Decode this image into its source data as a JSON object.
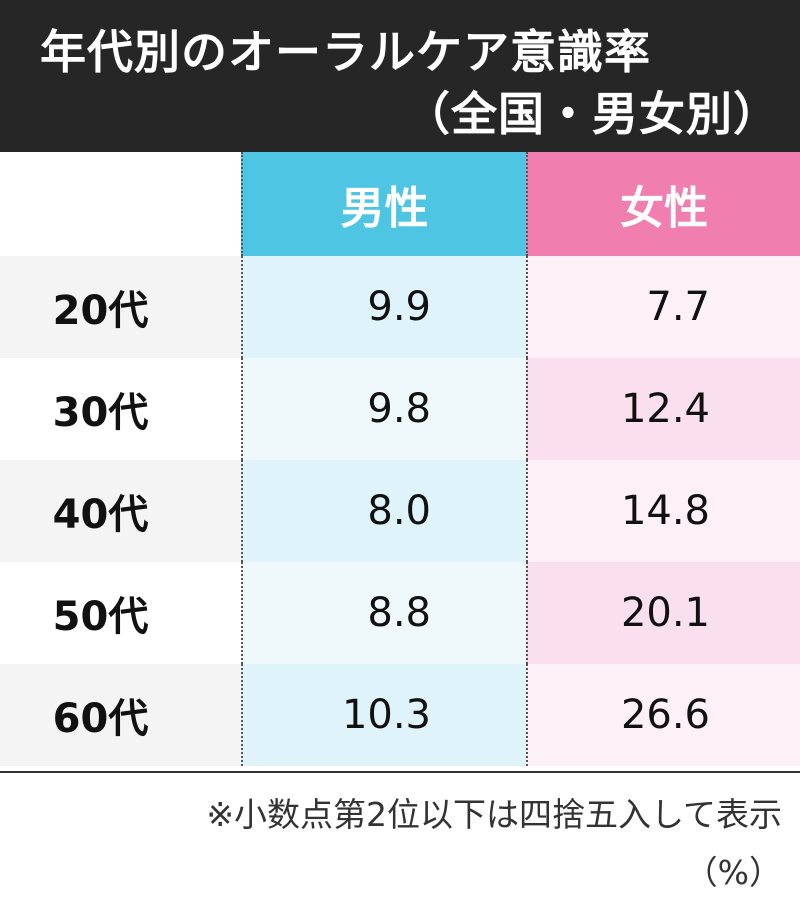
{
  "title_line1": "年代別のオーラルケア意識率",
  "title_line2": "（全国・男女別）",
  "columns": [
    "男性",
    "女性"
  ],
  "rows": [
    {
      "age": "20代",
      "men": "9.9",
      "women": "7.7"
    },
    {
      "age": "30代",
      "men": "9.8",
      "women": "12.4"
    },
    {
      "age": "40代",
      "men": "8.0",
      "women": "14.8"
    },
    {
      "age": "50代",
      "men": "8.8",
      "women": "20.1"
    },
    {
      "age": "60代",
      "men": "10.3",
      "women": "26.6"
    }
  ],
  "note": "※小数点第2位以下は四捨五入して表示",
  "unit": "（%）",
  "colors": {
    "header_bg": "#262626",
    "men_header": "#4ec6e3",
    "women_header": "#f07fb0",
    "age_bg_alt": [
      "#f4f4f4",
      "#ffffff"
    ],
    "men_bg_alt": [
      "#dff3fa",
      "#eff9fc"
    ],
    "women_bg_alt": [
      "#fdf0f7",
      "#fadfee"
    ]
  },
  "chart_data": {
    "type": "table",
    "title": "年代別のオーラルケア意識率（全国・男女別）",
    "columns": [
      "",
      "男性",
      "女性"
    ],
    "categories": [
      "20代",
      "30代",
      "40代",
      "50代",
      "60代"
    ],
    "series": [
      {
        "name": "男性",
        "values": [
          9.9,
          9.8,
          8.0,
          8.8,
          10.3
        ]
      },
      {
        "name": "女性",
        "values": [
          7.7,
          12.4,
          14.8,
          20.1,
          26.6
        ]
      }
    ],
    "unit": "（%）",
    "note": "※小数点第2位以下は四捨五入して表示"
  }
}
